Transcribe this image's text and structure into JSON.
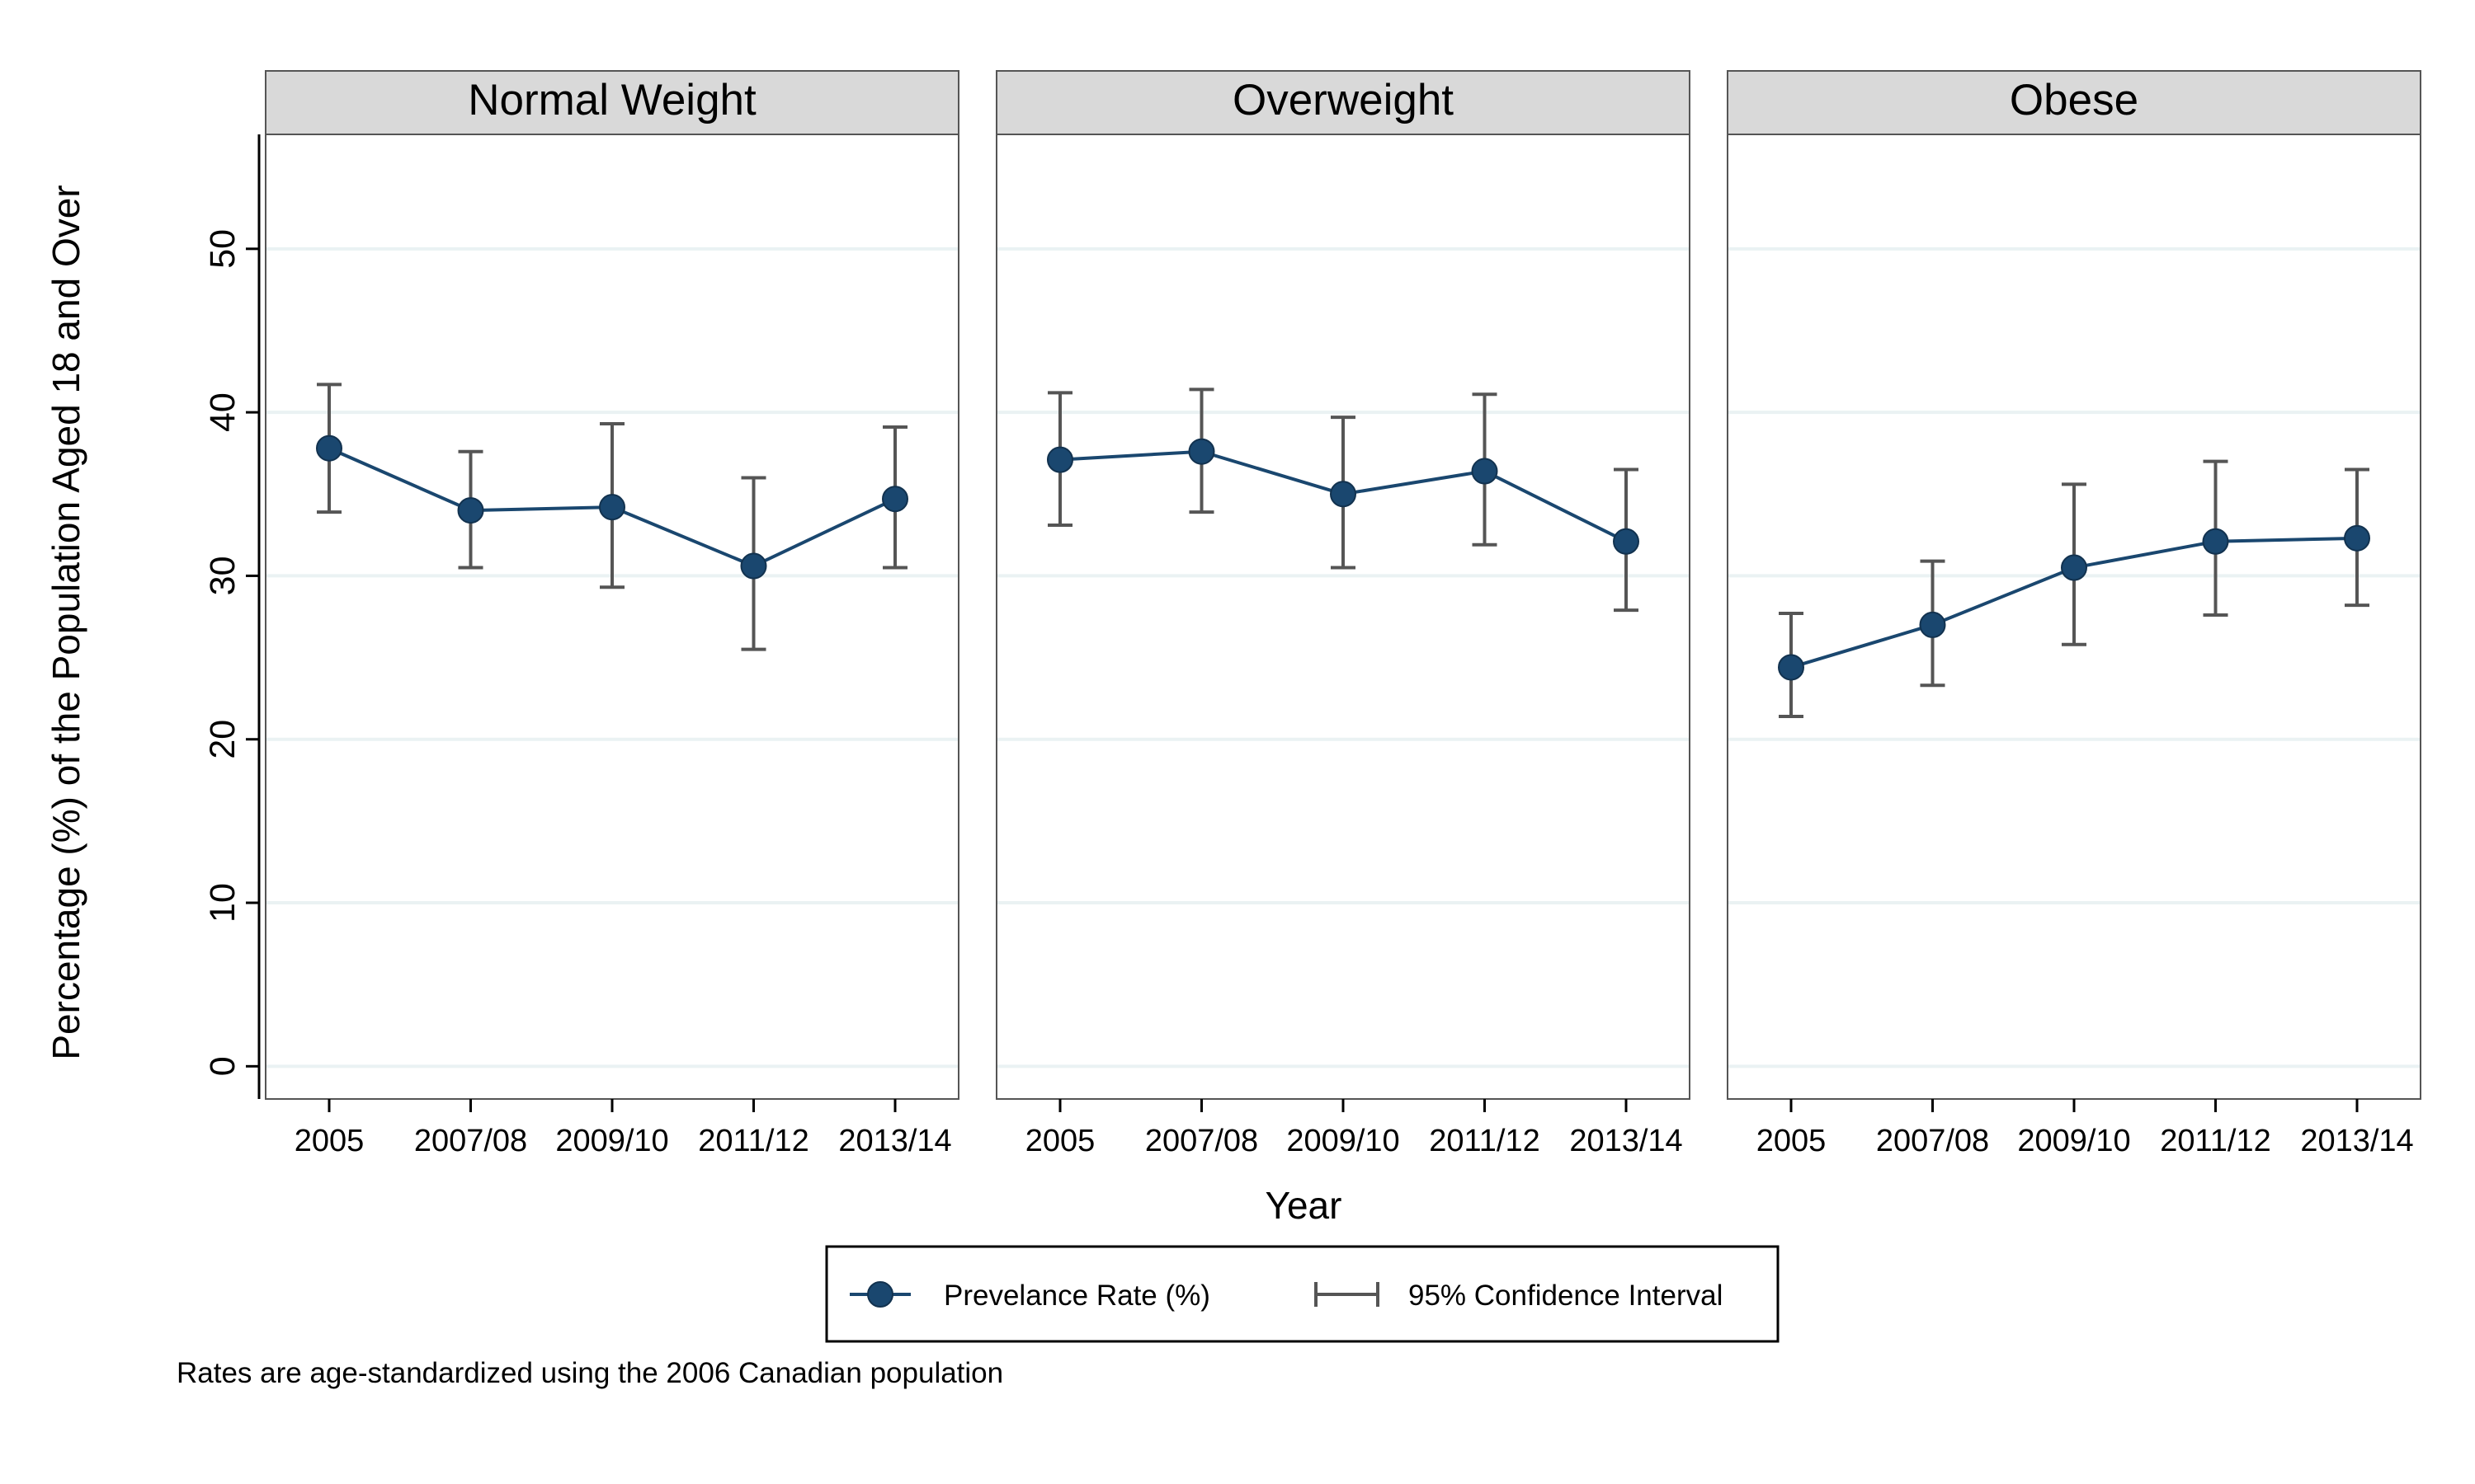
{
  "chart_data": {
    "type": "line",
    "ylabel": "Percentage (%) of the Population Aged 18 and Over",
    "xlabel": "Year",
    "ylim": [
      -2,
      57
    ],
    "yticks": [
      0,
      10,
      20,
      30,
      40,
      50
    ],
    "categories": [
      "2005",
      "2007/08",
      "2009/10",
      "2011/12",
      "2013/14"
    ],
    "grid": true,
    "legend_position": "bottom",
    "note": "Rates are age-standardized using the 2006 Canadian population",
    "legend": {
      "rate_label": "Prevelance Rate (%)",
      "ci_label": "95% Confidence Interval"
    },
    "colors": {
      "series": "#1a476f",
      "ci": "#555555",
      "strip": "#d9d9d9",
      "grid": "#eaf2f3"
    },
    "panels": [
      {
        "title": "Normal Weight",
        "values": [
          37.8,
          34.0,
          34.2,
          30.6,
          34.7
        ],
        "ci_low": [
          33.9,
          30.5,
          29.3,
          25.5,
          30.5
        ],
        "ci_high": [
          41.7,
          37.6,
          39.3,
          36.0,
          39.1
        ]
      },
      {
        "title": "Overweight",
        "values": [
          37.1,
          37.6,
          35.0,
          36.4,
          32.1
        ],
        "ci_low": [
          33.1,
          33.9,
          30.5,
          31.9,
          27.9
        ],
        "ci_high": [
          41.2,
          41.4,
          39.7,
          41.1,
          36.5
        ]
      },
      {
        "title": "Obese",
        "values": [
          24.4,
          27.0,
          30.5,
          32.1,
          32.3
        ],
        "ci_low": [
          21.4,
          23.3,
          25.8,
          27.6,
          28.2
        ],
        "ci_high": [
          27.7,
          30.9,
          35.6,
          37.0,
          36.5
        ]
      }
    ]
  }
}
